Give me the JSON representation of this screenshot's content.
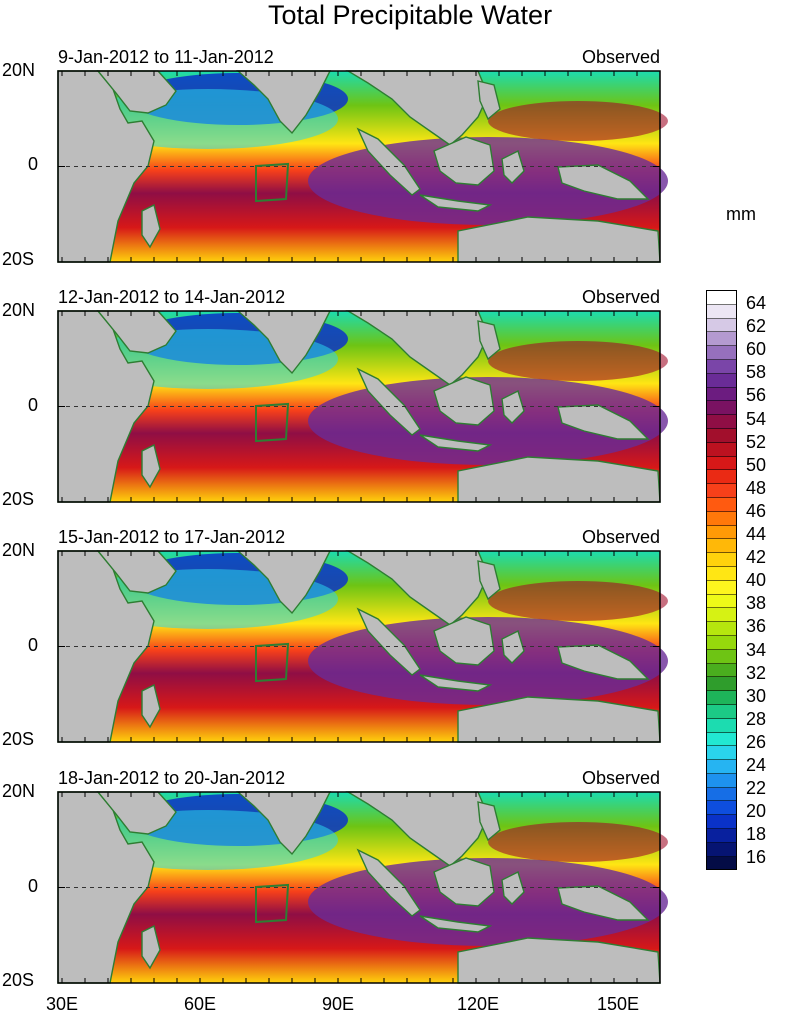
{
  "title": "Total Precipitable Water",
  "unit_label": "mm",
  "panels": [
    {
      "date_range": "9-Jan-2012 to 11-Jan-2012",
      "status": "Observed"
    },
    {
      "date_range": "12-Jan-2012 to 14-Jan-2012",
      "status": "Observed"
    },
    {
      "date_range": "15-Jan-2012 to 17-Jan-2012",
      "status": "Observed"
    },
    {
      "date_range": "18-Jan-2012 to 20-Jan-2012",
      "status": "Observed"
    }
  ],
  "lat_labels": [
    "20N",
    "0",
    "20S"
  ],
  "lon_labels": [
    "30E",
    "60E",
    "90E",
    "120E",
    "150E"
  ],
  "colorbar": {
    "labels": [
      "64",
      "62",
      "60",
      "58",
      "56",
      "54",
      "52",
      "50",
      "48",
      "46",
      "44",
      "42",
      "40",
      "38",
      "36",
      "34",
      "32",
      "30",
      "28",
      "26",
      "24",
      "22",
      "20",
      "18",
      "16"
    ],
    "colors_top_to_bottom": [
      "#ffffff",
      "#ece6f4",
      "#d6c9e6",
      "#b49ad0",
      "#9670bd",
      "#7a45a8",
      "#6a2c97",
      "#6c1c80",
      "#7a1262",
      "#8f0e45",
      "#a20f2c",
      "#bc1220",
      "#d71818",
      "#ea2a14",
      "#f7401a",
      "#ff5a10",
      "#ff780a",
      "#ff9a06",
      "#ffb808",
      "#ffd20c",
      "#ffe614",
      "#fdf51e",
      "#eefa18",
      "#d6f214",
      "#b6e60e",
      "#96d80c",
      "#6ec414",
      "#4aae1e",
      "#2f9d2c",
      "#1eb45a",
      "#1cca86",
      "#1cdcb0",
      "#22e8d2",
      "#2ad4ec",
      "#26b4f2",
      "#1e92ee",
      "#166ee6",
      "#0e4ede",
      "#0a32c8",
      "#08209e",
      "#061472",
      "#040c46"
    ]
  }
}
